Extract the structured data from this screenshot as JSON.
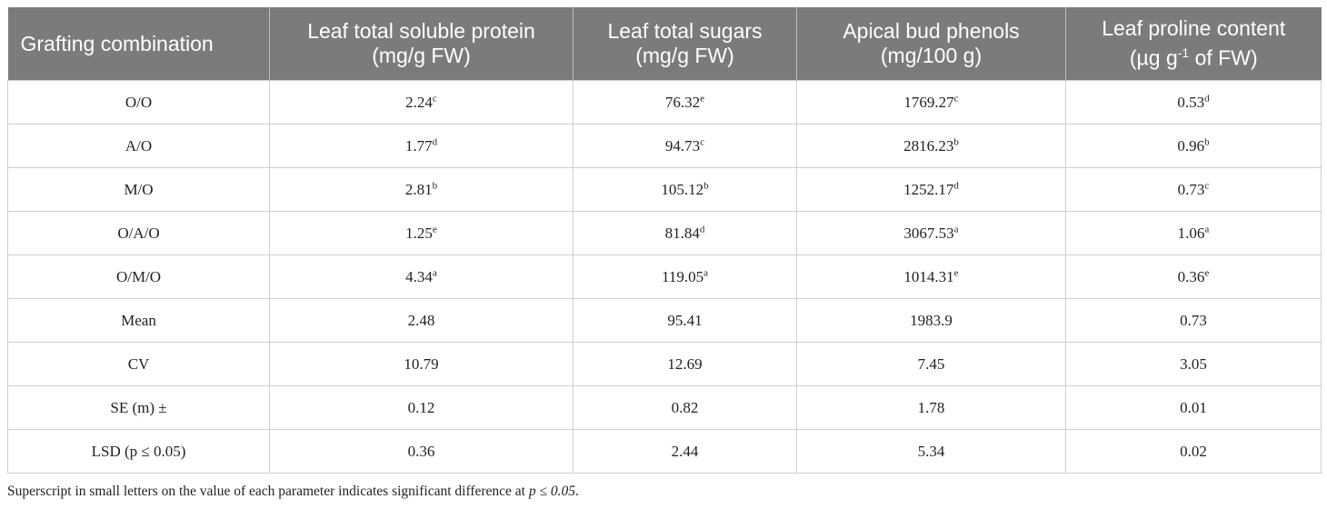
{
  "headers": [
    {
      "line1": "Grafting combination",
      "line2": ""
    },
    {
      "line1": "Leaf total soluble protein",
      "line2": "(mg/g FW)"
    },
    {
      "line1": "Leaf total sugars",
      "line2": "(mg/g FW)"
    },
    {
      "line1": "Apical bud phenols",
      "line2": "(mg/100 g)"
    },
    {
      "line1": "Leaf proline content",
      "line2": "(µg g",
      "line2_sup": "-1",
      "line2_tail": " of FW)"
    }
  ],
  "rows": [
    {
      "label": "O/O",
      "cells": [
        {
          "v": "2.24",
          "s": "c"
        },
        {
          "v": "76.32",
          "s": "e"
        },
        {
          "v": "1769.27",
          "s": "c"
        },
        {
          "v": "0.53",
          "s": "d"
        }
      ]
    },
    {
      "label": "A/O",
      "cells": [
        {
          "v": "1.77",
          "s": "d"
        },
        {
          "v": "94.73",
          "s": "c"
        },
        {
          "v": "2816.23",
          "s": "b"
        },
        {
          "v": "0.96",
          "s": "b"
        }
      ]
    },
    {
      "label": "M/O",
      "cells": [
        {
          "v": "2.81",
          "s": "b"
        },
        {
          "v": "105.12",
          "s": "b"
        },
        {
          "v": "1252.17",
          "s": "d"
        },
        {
          "v": "0.73",
          "s": "c"
        }
      ]
    },
    {
      "label": "O/A/O",
      "cells": [
        {
          "v": "1.25",
          "s": "e"
        },
        {
          "v": "81.84",
          "s": "d"
        },
        {
          "v": "3067.53",
          "s": "a"
        },
        {
          "v": "1.06",
          "s": "a"
        }
      ]
    },
    {
      "label": "O/M/O",
      "cells": [
        {
          "v": "4.34",
          "s": "a"
        },
        {
          "v": "119.05",
          "s": "a"
        },
        {
          "v": "1014.31",
          "s": "e"
        },
        {
          "v": "0.36",
          "s": "e"
        }
      ]
    },
    {
      "label": "Mean",
      "cells": [
        {
          "v": "2.48",
          "s": ""
        },
        {
          "v": "95.41",
          "s": ""
        },
        {
          "v": "1983.9",
          "s": ""
        },
        {
          "v": "0.73",
          "s": ""
        }
      ]
    },
    {
      "label": "CV",
      "cells": [
        {
          "v": "10.79",
          "s": ""
        },
        {
          "v": "12.69",
          "s": ""
        },
        {
          "v": "7.45",
          "s": ""
        },
        {
          "v": "3.05",
          "s": ""
        }
      ]
    },
    {
      "label": "SE (m) ±",
      "cells": [
        {
          "v": "0.12",
          "s": ""
        },
        {
          "v": "0.82",
          "s": ""
        },
        {
          "v": "1.78",
          "s": ""
        },
        {
          "v": "0.01",
          "s": ""
        }
      ]
    },
    {
      "label": "LSD (p ≤ 0.05)",
      "cells": [
        {
          "v": "0.36",
          "s": ""
        },
        {
          "v": "2.44",
          "s": ""
        },
        {
          "v": "5.34",
          "s": ""
        },
        {
          "v": "0.02",
          "s": ""
        }
      ]
    }
  ],
  "footnote": {
    "text": "Superscript in small letters on the value of each parameter indicates significant difference at ",
    "emph": "p ≤ 0.05",
    "end": "."
  },
  "colors": {
    "header_bg": "#7b7b7b",
    "header_text": "#ffffff",
    "border": "#cfcfcf"
  }
}
